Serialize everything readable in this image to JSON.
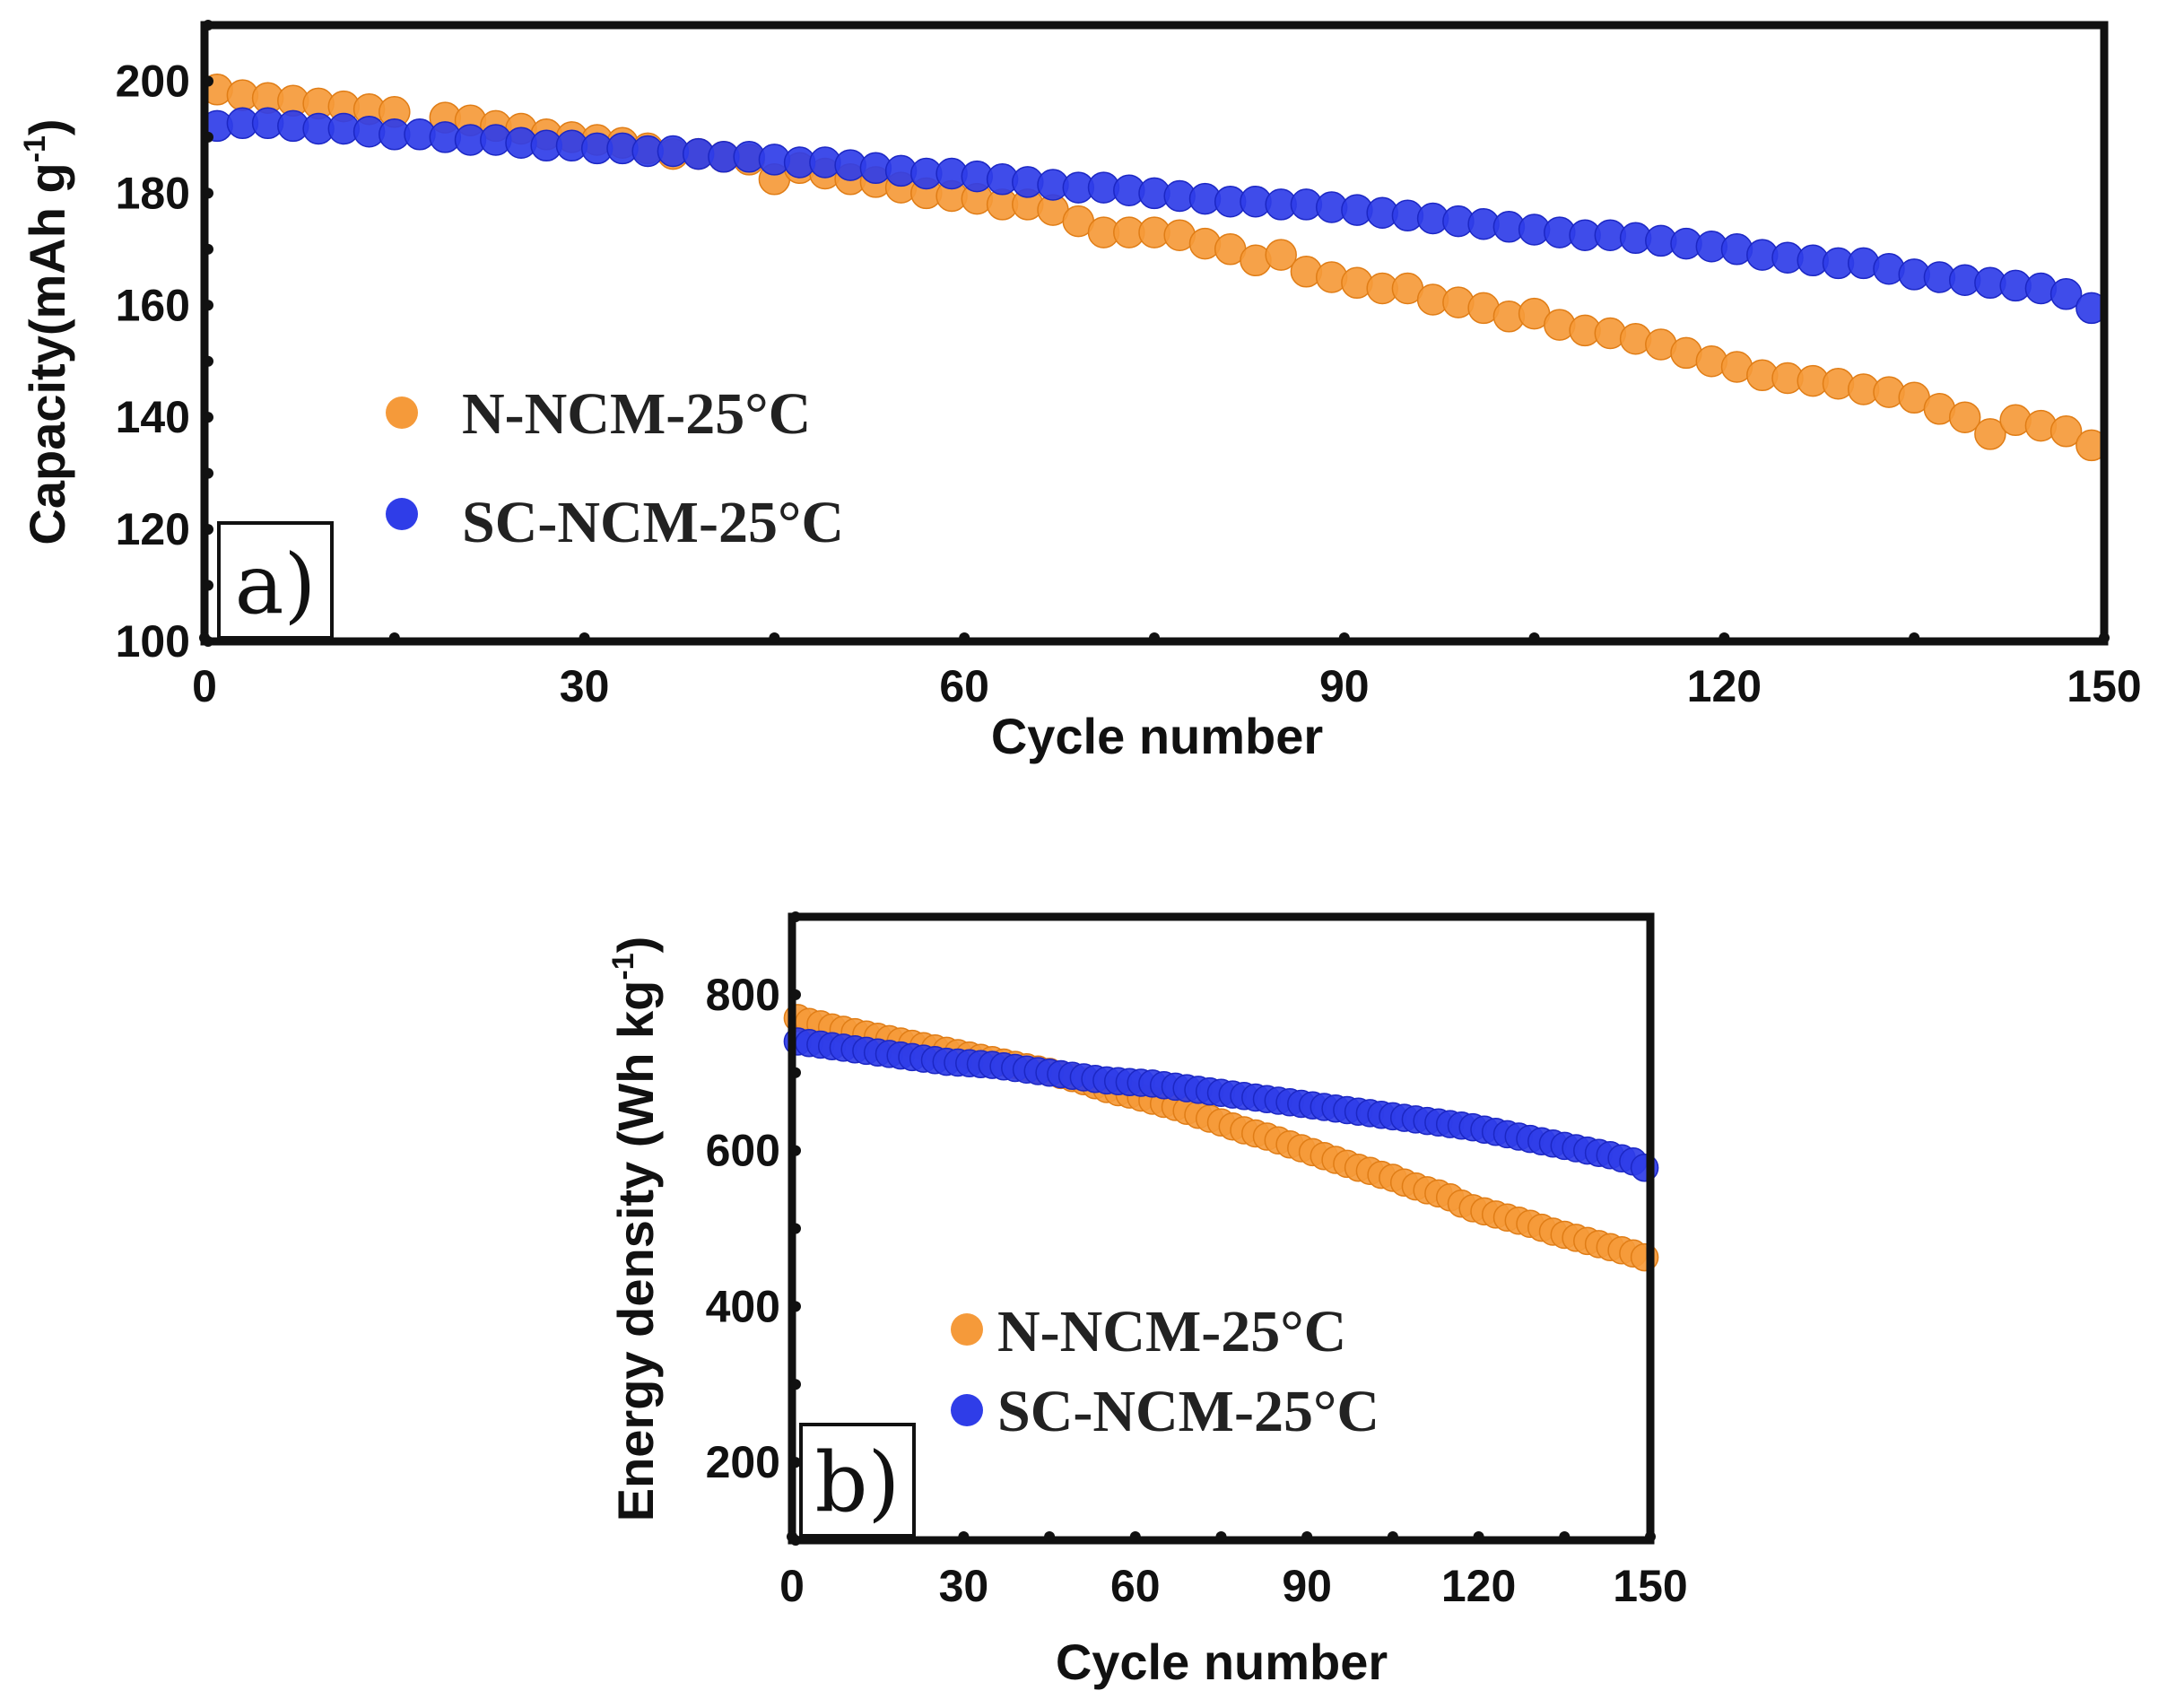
{
  "colors": {
    "n_ncm": "#f59a3a",
    "sc_ncm": "#2f3de8"
  },
  "chart_data": [
    {
      "type": "scatter",
      "panel_label": "a)",
      "title": "",
      "xlabel": "Cycle number",
      "ylabel": "Capacity(mAh g",
      "ylabel_sup": "-1",
      "ylabel_close": ")",
      "xlim": [
        0,
        150
      ],
      "ylim": [
        100,
        210
      ],
      "xticks": [
        0,
        30,
        60,
        90,
        120,
        150
      ],
      "xtick_labels": [
        "0",
        "30",
        "60",
        "90",
        "120",
        "150"
      ],
      "yticks": [
        100,
        120,
        140,
        160,
        180,
        200
      ],
      "ytick_labels": [
        "100",
        "120",
        "140",
        "160",
        "180",
        "200"
      ],
      "legend_position": "center-left",
      "series": [
        {
          "name": "N-NCM-25°C",
          "color": "#f59a3a",
          "x": [
            1,
            3,
            5,
            7,
            9,
            11,
            13,
            15,
            19,
            21,
            23,
            25,
            27,
            29,
            31,
            33,
            35,
            37,
            39,
            41,
            43,
            45,
            47,
            49,
            51,
            53,
            55,
            57,
            59,
            61,
            63,
            65,
            67,
            69,
            71,
            73,
            75,
            77,
            79,
            81,
            83,
            85,
            87,
            89,
            91,
            93,
            95,
            97,
            99,
            101,
            103,
            105,
            107,
            109,
            111,
            113,
            115,
            117,
            119,
            121,
            123,
            125,
            127,
            129,
            131,
            133,
            135,
            137,
            139,
            141,
            143,
            145,
            147,
            149
          ],
          "values": [
            198.5,
            197.5,
            197,
            196.5,
            196,
            195.5,
            195,
            194.5,
            193.5,
            193,
            192,
            191.5,
            190.5,
            190,
            189.5,
            189,
            188,
            187,
            187,
            186.5,
            186,
            182.5,
            184.5,
            183.5,
            182.5,
            182,
            181,
            180,
            179.5,
            179,
            178,
            178,
            177,
            175,
            173,
            173,
            173,
            172.5,
            171,
            170,
            168,
            169,
            166,
            165,
            164,
            163,
            163,
            161,
            160.5,
            159.5,
            158,
            158.5,
            156.5,
            155.5,
            155,
            154,
            153,
            151.5,
            150,
            149,
            147.5,
            147,
            146.5,
            146,
            145,
            144.5,
            143.5,
            141.5,
            140,
            137,
            139.5,
            138.5,
            137.5,
            135
          ]
        },
        {
          "name": "SC-NCM-25°C",
          "color": "#2f3de8",
          "x": [
            1,
            3,
            5,
            7,
            9,
            11,
            13,
            15,
            17,
            19,
            21,
            23,
            25,
            27,
            29,
            31,
            33,
            35,
            37,
            39,
            41,
            43,
            45,
            47,
            49,
            51,
            53,
            55,
            57,
            59,
            61,
            63,
            65,
            67,
            69,
            71,
            73,
            75,
            77,
            79,
            81,
            83,
            85,
            87,
            89,
            91,
            93,
            95,
            97,
            99,
            101,
            103,
            105,
            107,
            109,
            111,
            113,
            115,
            117,
            119,
            121,
            123,
            125,
            127,
            129,
            131,
            133,
            135,
            137,
            139,
            141,
            143,
            145,
            147,
            149
          ],
          "values": [
            192,
            192.5,
            192.5,
            192,
            191.5,
            191.5,
            191,
            190.5,
            190.5,
            190,
            189.5,
            189.5,
            189,
            188.5,
            188.5,
            188,
            188,
            187.5,
            187.5,
            187,
            186.5,
            186.5,
            186,
            185.5,
            185.5,
            185,
            184.5,
            184,
            183.5,
            183.5,
            183,
            182.5,
            182,
            181.5,
            181,
            181,
            180.5,
            180,
            179.5,
            179,
            178.5,
            178.5,
            178,
            178,
            177.5,
            177,
            176.5,
            176,
            175.5,
            175,
            174.5,
            174,
            173.5,
            173,
            172.5,
            172.5,
            172,
            171.5,
            171,
            170.5,
            170,
            169,
            168.5,
            168,
            167.5,
            167.5,
            166.5,
            165.5,
            165,
            164.5,
            164,
            163.5,
            163,
            162,
            159.5
          ]
        }
      ]
    },
    {
      "type": "scatter",
      "panel_label": "b)",
      "title": "",
      "xlabel": "Cycle number",
      "ylabel": "Energy density (Wh kg",
      "ylabel_sup": "-1",
      "ylabel_close": ")",
      "xlim": [
        0,
        150
      ],
      "ylim": [
        100,
        900
      ],
      "xticks": [
        0,
        30,
        60,
        90,
        120,
        150
      ],
      "xtick_labels": [
        "0",
        "30",
        "60",
        "90",
        "120",
        "150"
      ],
      "yticks": [
        200,
        400,
        600,
        800
      ],
      "ytick_labels": [
        "200",
        "400",
        "600",
        "800"
      ],
      "legend_position": "lower-right",
      "series": [
        {
          "name": "N-NCM-25°C",
          "color": "#f59a3a",
          "x": [
            1,
            3,
            5,
            7,
            9,
            11,
            13,
            15,
            17,
            19,
            21,
            23,
            25,
            27,
            29,
            31,
            33,
            35,
            37,
            39,
            41,
            43,
            45,
            47,
            49,
            51,
            53,
            55,
            57,
            59,
            61,
            63,
            65,
            67,
            69,
            71,
            73,
            75,
            77,
            79,
            81,
            83,
            85,
            87,
            89,
            91,
            93,
            95,
            97,
            99,
            101,
            103,
            105,
            107,
            109,
            111,
            113,
            115,
            117,
            119,
            121,
            123,
            125,
            127,
            129,
            131,
            133,
            135,
            137,
            139,
            141,
            143,
            145,
            147,
            149
          ],
          "values": [
            770,
            765,
            762,
            758,
            755,
            752,
            749,
            746,
            743,
            740,
            737,
            734,
            731,
            728,
            725,
            722,
            719,
            716,
            713,
            710,
            707,
            704,
            701,
            697,
            693,
            689,
            684,
            679,
            675,
            672,
            668,
            664,
            660,
            656,
            651,
            646,
            641,
            636,
            631,
            626,
            622,
            618,
            613,
            608,
            603,
            598,
            593,
            588,
            583,
            578,
            574,
            569,
            565,
            559,
            554,
            549,
            545,
            540,
            532,
            526,
            522,
            518,
            514,
            510,
            506,
            501,
            496,
            492,
            488,
            484,
            480,
            476,
            472,
            468,
            463
          ]
        },
        {
          "name": "SC-NCM-25°C",
          "color": "#2f3de8",
          "x": [
            1,
            3,
            5,
            7,
            9,
            11,
            13,
            15,
            17,
            19,
            21,
            23,
            25,
            27,
            29,
            31,
            33,
            35,
            37,
            39,
            41,
            43,
            45,
            47,
            49,
            51,
            53,
            55,
            57,
            59,
            61,
            63,
            65,
            67,
            69,
            71,
            73,
            75,
            77,
            79,
            81,
            83,
            85,
            87,
            89,
            91,
            93,
            95,
            97,
            99,
            101,
            103,
            105,
            107,
            109,
            111,
            113,
            115,
            117,
            119,
            121,
            123,
            125,
            127,
            129,
            131,
            133,
            135,
            137,
            139,
            141,
            143,
            145,
            147,
            149
          ],
          "values": [
            740,
            738,
            736,
            734,
            732,
            730,
            728,
            726,
            724,
            722,
            720,
            718,
            716,
            714,
            713,
            712,
            711,
            710,
            708,
            706,
            704,
            702,
            700,
            698,
            696,
            694,
            692,
            690,
            689,
            688,
            687,
            686,
            684,
            682,
            680,
            678,
            676,
            674,
            672,
            670,
            668,
            666,
            664,
            662,
            660,
            658,
            656,
            654,
            652,
            650,
            648,
            646,
            644,
            642,
            640,
            638,
            636,
            634,
            632,
            630,
            627,
            624,
            621,
            618,
            615,
            612,
            609,
            606,
            603,
            600,
            597,
            594,
            590,
            586,
            578
          ]
        }
      ]
    }
  ]
}
